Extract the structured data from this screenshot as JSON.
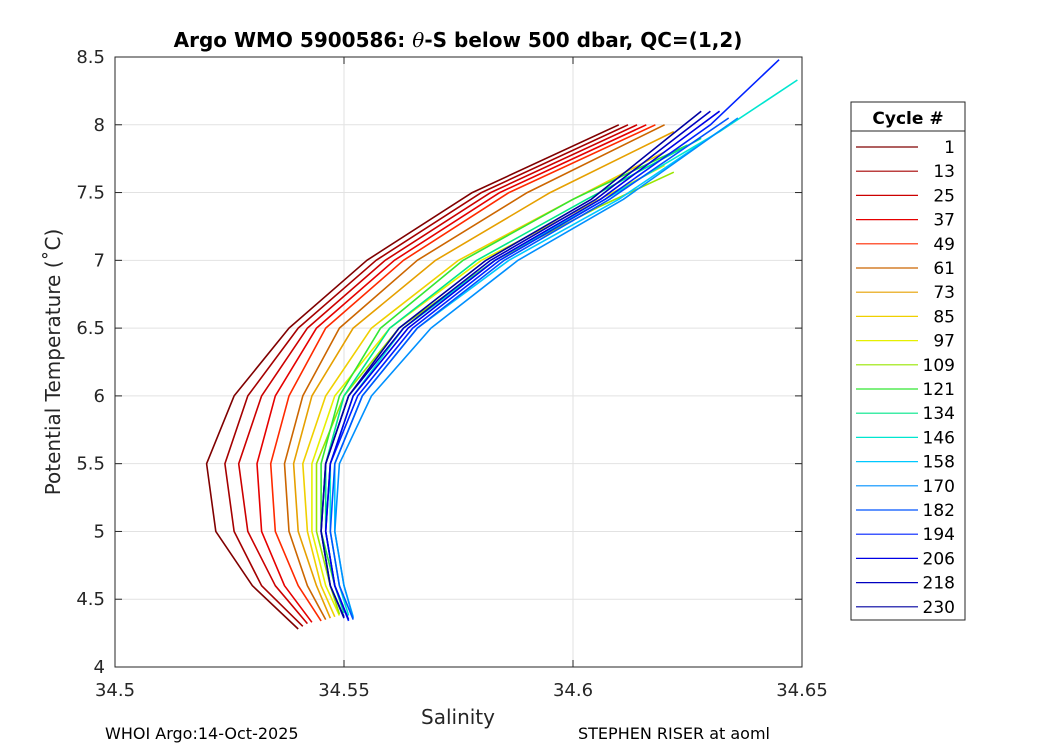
{
  "chart_data": {
    "type": "line",
    "title": "Argo WMO 5900586: θ-S below 500 dbar,  QC=(1,2)",
    "title_parts": {
      "prefix": "Argo WMO 5900586: ",
      "symbol": "θ",
      "suffix": "-S below 500 dbar,  QC=(1,2)"
    },
    "xlabel": "Salinity",
    "ylabel": "Potential Temperature (˚C)",
    "xlim": [
      34.5,
      34.65
    ],
    "ylim": [
      4,
      8.5
    ],
    "xticks": [
      34.5,
      34.55,
      34.6,
      34.65
    ],
    "xtick_labels": [
      "34.5",
      "34.55",
      "34.6",
      "34.65"
    ],
    "yticks": [
      4,
      4.5,
      5,
      5.5,
      6,
      6.5,
      7,
      7.5,
      8,
      8.5
    ],
    "ytick_labels": [
      "4",
      "4.5",
      "5",
      "5.5",
      "6",
      "6.5",
      "7",
      "7.5",
      "8",
      "8.5"
    ],
    "grid": true,
    "legend_title": "Cycle #",
    "legend_position": "outside-right",
    "series": [
      {
        "name": "1",
        "color": "#800000",
        "points": [
          [
            34.54,
            4.28
          ],
          [
            34.53,
            4.6
          ],
          [
            34.522,
            5.0
          ],
          [
            34.52,
            5.5
          ],
          [
            34.526,
            6.0
          ],
          [
            34.538,
            6.5
          ],
          [
            34.555,
            7.0
          ],
          [
            34.578,
            7.5
          ],
          [
            34.61,
            8.0
          ]
        ]
      },
      {
        "name": "13",
        "color": "#a50000",
        "points": [
          [
            34.541,
            4.3
          ],
          [
            34.532,
            4.6
          ],
          [
            34.526,
            5.0
          ],
          [
            34.524,
            5.5
          ],
          [
            34.529,
            6.0
          ],
          [
            34.54,
            6.5
          ],
          [
            34.557,
            7.0
          ],
          [
            34.58,
            7.5
          ],
          [
            34.612,
            8.0
          ]
        ]
      },
      {
        "name": "25",
        "color": "#cc0000",
        "points": [
          [
            34.542,
            4.32
          ],
          [
            34.535,
            4.6
          ],
          [
            34.529,
            5.0
          ],
          [
            34.527,
            5.5
          ],
          [
            34.532,
            6.0
          ],
          [
            34.542,
            6.5
          ],
          [
            34.559,
            7.0
          ],
          [
            34.582,
            7.5
          ],
          [
            34.614,
            8.0
          ]
        ]
      },
      {
        "name": "37",
        "color": "#e60000",
        "points": [
          [
            34.543,
            4.33
          ],
          [
            34.537,
            4.6
          ],
          [
            34.532,
            5.0
          ],
          [
            34.531,
            5.5
          ],
          [
            34.535,
            6.0
          ],
          [
            34.544,
            6.5
          ],
          [
            34.561,
            7.0
          ],
          [
            34.584,
            7.5
          ],
          [
            34.616,
            8.0
          ]
        ]
      },
      {
        "name": "49",
        "color": "#ff2a00",
        "points": [
          [
            34.545,
            4.34
          ],
          [
            34.54,
            4.6
          ],
          [
            34.535,
            5.0
          ],
          [
            34.534,
            5.5
          ],
          [
            34.538,
            6.0
          ],
          [
            34.546,
            6.5
          ],
          [
            34.563,
            7.0
          ],
          [
            34.586,
            7.5
          ],
          [
            34.618,
            8.0
          ]
        ]
      },
      {
        "name": "61",
        "color": "#cc6600",
        "points": [
          [
            34.546,
            4.35
          ],
          [
            34.542,
            4.6
          ],
          [
            34.538,
            5.0
          ],
          [
            34.537,
            5.5
          ],
          [
            34.541,
            6.0
          ],
          [
            34.549,
            6.5
          ],
          [
            34.566,
            7.0
          ],
          [
            34.59,
            7.5
          ],
          [
            34.62,
            8.0
          ]
        ]
      },
      {
        "name": "73",
        "color": "#e6a000",
        "points": [
          [
            34.547,
            4.36
          ],
          [
            34.544,
            4.6
          ],
          [
            34.54,
            5.0
          ],
          [
            34.539,
            5.5
          ],
          [
            34.543,
            6.0
          ],
          [
            34.552,
            6.5
          ],
          [
            34.57,
            7.0
          ],
          [
            34.595,
            7.5
          ],
          [
            34.622,
            7.95
          ]
        ]
      },
      {
        "name": "85",
        "color": "#f0d000",
        "points": [
          [
            34.548,
            4.37
          ],
          [
            34.545,
            4.6
          ],
          [
            34.542,
            5.0
          ],
          [
            34.541,
            5.5
          ],
          [
            34.546,
            6.0
          ],
          [
            34.556,
            6.5
          ],
          [
            34.575,
            7.0
          ],
          [
            34.6,
            7.45
          ],
          [
            34.62,
            7.8
          ]
        ]
      },
      {
        "name": "97",
        "color": "#e6f000",
        "points": [
          [
            34.549,
            4.38
          ],
          [
            34.546,
            4.6
          ],
          [
            34.543,
            5.0
          ],
          [
            34.543,
            5.5
          ],
          [
            34.548,
            6.0
          ],
          [
            34.56,
            6.5
          ],
          [
            34.58,
            7.0
          ],
          [
            34.603,
            7.4
          ],
          [
            34.62,
            7.7
          ]
        ]
      },
      {
        "name": "109",
        "color": "#99e600",
        "points": [
          [
            34.549,
            4.39
          ],
          [
            34.547,
            4.6
          ],
          [
            34.544,
            5.0
          ],
          [
            34.544,
            5.5
          ],
          [
            34.55,
            6.0
          ],
          [
            34.562,
            6.5
          ],
          [
            34.583,
            7.0
          ],
          [
            34.606,
            7.4
          ],
          [
            34.622,
            7.65
          ]
        ]
      },
      {
        "name": "121",
        "color": "#33e633",
        "points": [
          [
            34.55,
            4.4
          ],
          [
            34.548,
            4.6
          ],
          [
            34.545,
            5.0
          ],
          [
            34.545,
            5.5
          ],
          [
            34.549,
            6.0
          ],
          [
            34.558,
            6.5
          ],
          [
            34.576,
            7.0
          ],
          [
            34.6,
            7.45
          ],
          [
            34.625,
            7.85
          ]
        ]
      },
      {
        "name": "134",
        "color": "#00e68a",
        "points": [
          [
            34.55,
            4.4
          ],
          [
            34.548,
            4.6
          ],
          [
            34.546,
            5.0
          ],
          [
            34.546,
            5.5
          ],
          [
            34.55,
            6.0
          ],
          [
            34.56,
            6.5
          ],
          [
            34.579,
            7.0
          ],
          [
            34.603,
            7.45
          ],
          [
            34.628,
            7.9
          ]
        ]
      },
      {
        "name": "146",
        "color": "#00e6d0",
        "points": [
          [
            34.551,
            4.38
          ],
          [
            34.549,
            4.6
          ],
          [
            34.547,
            5.0
          ],
          [
            34.547,
            5.5
          ],
          [
            34.552,
            6.0
          ],
          [
            34.563,
            6.5
          ],
          [
            34.583,
            7.0
          ],
          [
            34.607,
            7.45
          ],
          [
            34.632,
            7.95
          ],
          [
            34.649,
            8.33
          ]
        ]
      },
      {
        "name": "158",
        "color": "#00c8ff",
        "points": [
          [
            34.552,
            4.37
          ],
          [
            34.55,
            4.6
          ],
          [
            34.548,
            5.0
          ],
          [
            34.548,
            5.5
          ],
          [
            34.554,
            6.0
          ],
          [
            34.566,
            6.5
          ],
          [
            34.586,
            7.0
          ],
          [
            34.61,
            7.45
          ],
          [
            34.634,
            8.0
          ]
        ]
      },
      {
        "name": "170",
        "color": "#0090ff",
        "points": [
          [
            34.552,
            4.36
          ],
          [
            34.55,
            4.6
          ],
          [
            34.548,
            5.0
          ],
          [
            34.549,
            5.5
          ],
          [
            34.556,
            6.0
          ],
          [
            34.569,
            6.5
          ],
          [
            34.588,
            7.0
          ],
          [
            34.611,
            7.45
          ],
          [
            34.636,
            8.05
          ]
        ]
      },
      {
        "name": "182",
        "color": "#0055ff",
        "points": [
          [
            34.552,
            4.35
          ],
          [
            34.549,
            4.6
          ],
          [
            34.547,
            5.0
          ],
          [
            34.548,
            5.5
          ],
          [
            34.554,
            6.0
          ],
          [
            34.566,
            6.5
          ],
          [
            34.585,
            7.0
          ],
          [
            34.608,
            7.45
          ],
          [
            34.634,
            8.05
          ]
        ]
      },
      {
        "name": "194",
        "color": "#0022ff",
        "points": [
          [
            34.551,
            4.34
          ],
          [
            34.548,
            4.6
          ],
          [
            34.546,
            5.0
          ],
          [
            34.547,
            5.5
          ],
          [
            34.553,
            6.0
          ],
          [
            34.565,
            6.5
          ],
          [
            34.584,
            7.0
          ],
          [
            34.607,
            7.45
          ],
          [
            34.63,
            8.0
          ],
          [
            34.645,
            8.48
          ]
        ]
      },
      {
        "name": "206",
        "color": "#0000e6",
        "points": [
          [
            34.551,
            4.35
          ],
          [
            34.548,
            4.6
          ],
          [
            34.546,
            5.0
          ],
          [
            34.547,
            5.5
          ],
          [
            34.552,
            6.0
          ],
          [
            34.564,
            6.5
          ],
          [
            34.583,
            7.0
          ],
          [
            34.606,
            7.45
          ],
          [
            34.632,
            8.1
          ]
        ]
      },
      {
        "name": "218",
        "color": "#0000c0",
        "points": [
          [
            34.55,
            4.36
          ],
          [
            34.547,
            4.6
          ],
          [
            34.545,
            5.0
          ],
          [
            34.546,
            5.5
          ],
          [
            34.551,
            6.0
          ],
          [
            34.563,
            6.5
          ],
          [
            34.582,
            7.0
          ],
          [
            34.605,
            7.45
          ],
          [
            34.63,
            8.1
          ]
        ]
      },
      {
        "name": "230",
        "color": "#0000a0",
        "points": [
          [
            34.55,
            4.37
          ],
          [
            34.547,
            4.6
          ],
          [
            34.545,
            5.0
          ],
          [
            34.546,
            5.5
          ],
          [
            34.551,
            6.0
          ],
          [
            34.562,
            6.5
          ],
          [
            34.581,
            7.0
          ],
          [
            34.604,
            7.45
          ],
          [
            34.628,
            8.1
          ]
        ]
      }
    ]
  },
  "footer": {
    "left": "WHOI Argo:14-Oct-2025",
    "right": "STEPHEN RISER at aoml"
  }
}
